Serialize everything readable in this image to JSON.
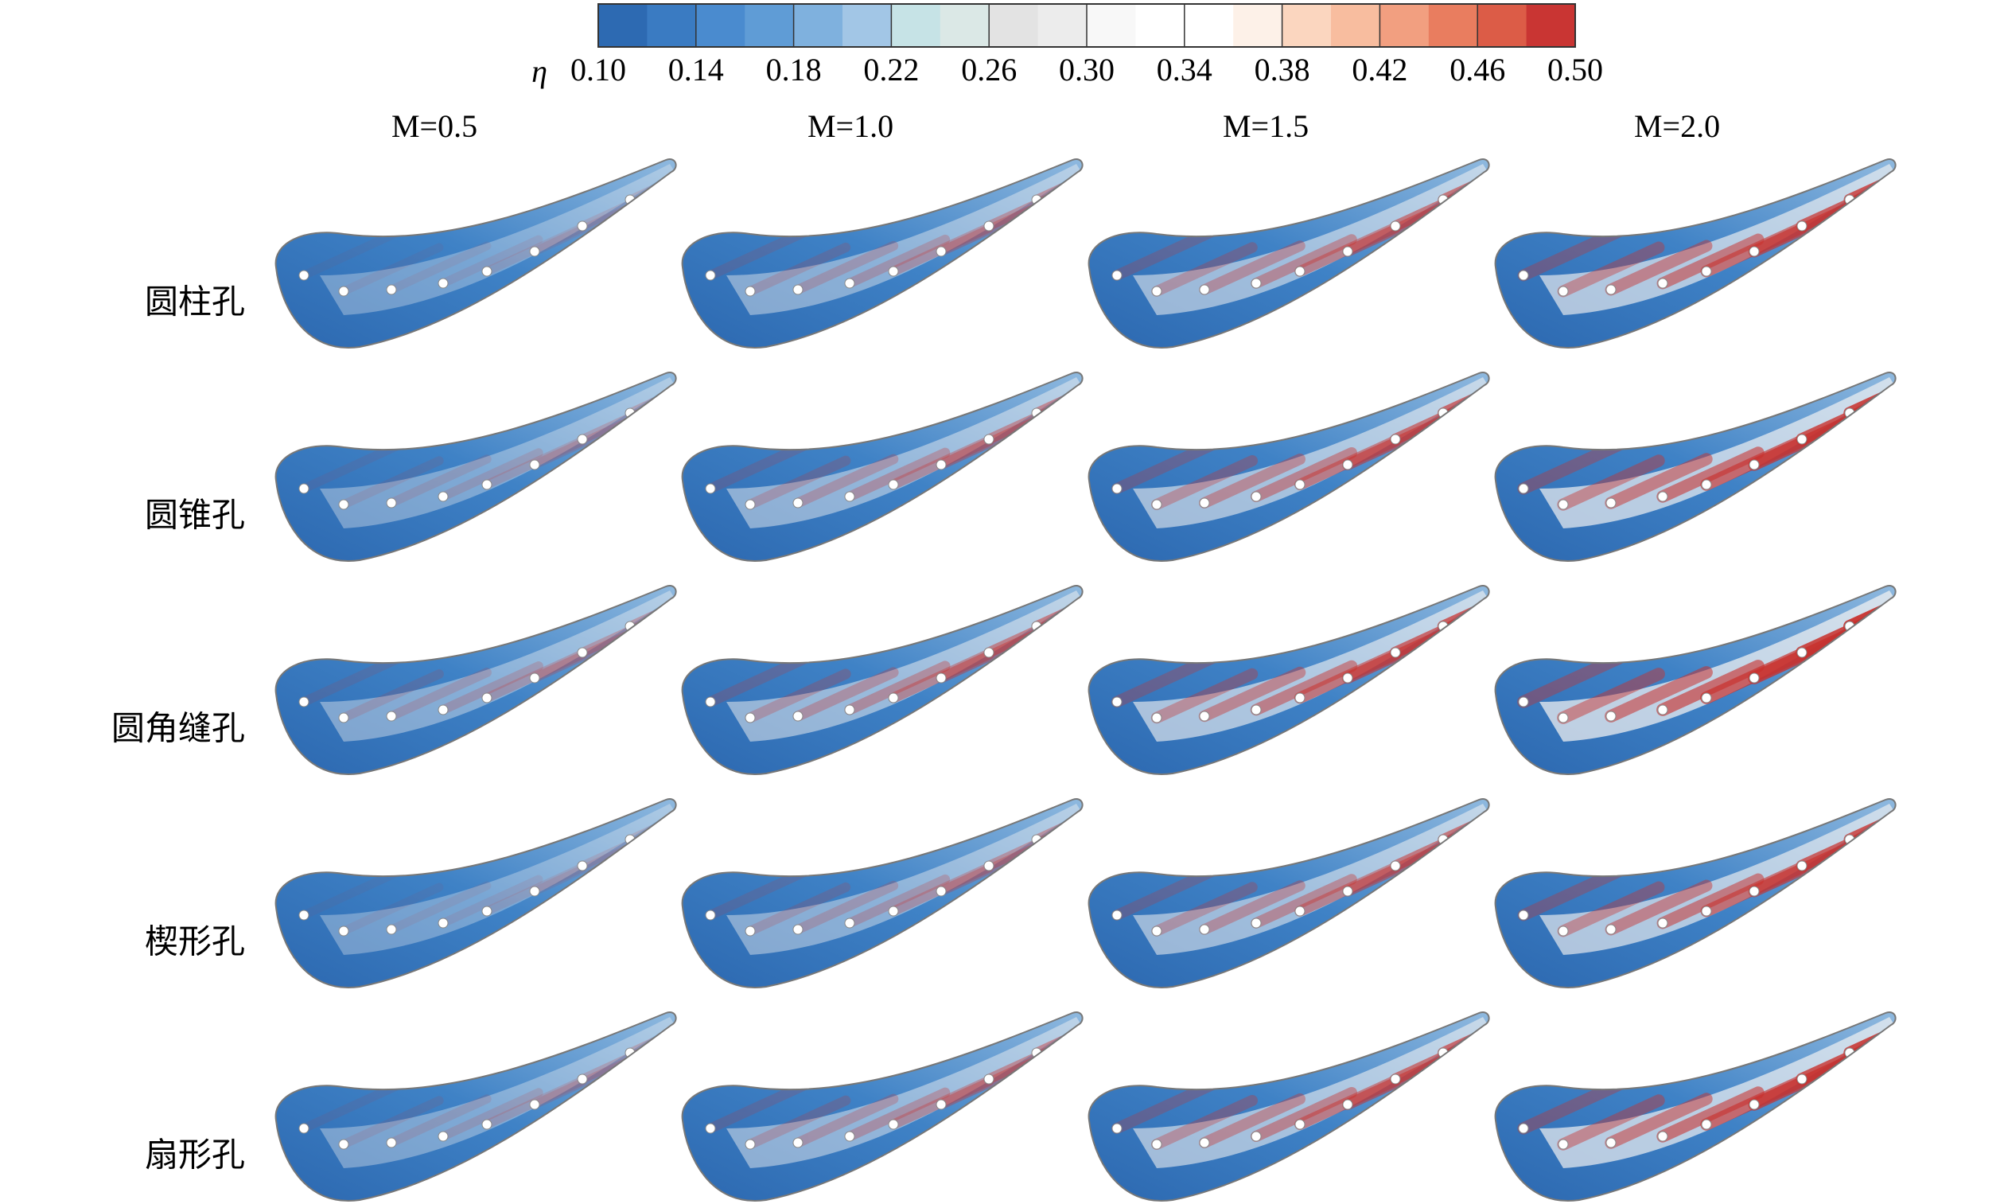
{
  "colorbar": {
    "label": "η",
    "ticks": [
      {
        "value": 0.1,
        "label": "0.10"
      },
      {
        "value": 0.14,
        "label": "0.14"
      },
      {
        "value": 0.18,
        "label": "0.18"
      },
      {
        "value": 0.22,
        "label": "0.22"
      },
      {
        "value": 0.26,
        "label": "0.26"
      },
      {
        "value": 0.3,
        "label": "0.30"
      },
      {
        "value": 0.34,
        "label": "0.34"
      },
      {
        "value": 0.38,
        "label": "0.38"
      },
      {
        "value": 0.42,
        "label": "0.42"
      },
      {
        "value": 0.46,
        "label": "0.46"
      },
      {
        "value": 0.5,
        "label": "0.50"
      }
    ],
    "lim": [
      0.1,
      0.5
    ],
    "colors": [
      "#2d6ab2",
      "#3a7bc2",
      "#4a8bcf",
      "#5f9cd6",
      "#7fb1de",
      "#a2c6e6",
      "#c6e3e6",
      "#dbe8e6",
      "#e3e3e3",
      "#ececec",
      "#f8f8f8",
      "#ffffff",
      "#ffffff",
      "#fdf1e8",
      "#fbd6bf",
      "#f8bd9f",
      "#f29f80",
      "#e97d5f",
      "#dc5c47",
      "#c93533"
    ]
  },
  "columns": [
    "M=0.5",
    "M=1.0",
    "M=1.5",
    "M=2.0"
  ],
  "rows": [
    "圆柱孔",
    "圆锥孔",
    "圆角缝孔",
    "楔形孔",
    "扇形孔"
  ]
}
